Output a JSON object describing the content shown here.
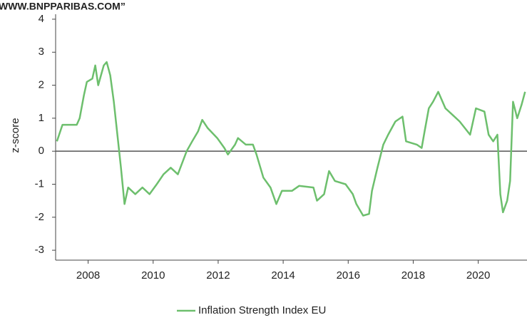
{
  "chart_data": {
    "type": "line",
    "title": "WWW.BNPPARIBAS.COM”",
    "ylabel": "z-score",
    "xlim": [
      2007,
      2021.5
    ],
    "xticks": [
      2008,
      2010,
      2012,
      2014,
      2016,
      2018,
      2020
    ],
    "ylim": [
      -3.3,
      4.15
    ],
    "yticks": [
      -3,
      -2,
      -1,
      0,
      1,
      2,
      3,
      4
    ],
    "legend": "bottom",
    "x": [
      2007.04,
      2007.21,
      2007.47,
      2007.65,
      2007.74,
      2007.87,
      2007.96,
      2008.13,
      2008.22,
      2008.31,
      2008.48,
      2008.57,
      2008.68,
      2008.79,
      2008.9,
      2009.01,
      2009.12,
      2009.23,
      2009.45,
      2009.67,
      2009.89,
      2010.11,
      2010.32,
      2010.54,
      2010.76,
      2011.03,
      2011.2,
      2011.38,
      2011.51,
      2011.68,
      2011.97,
      2012.19,
      2012.3,
      2012.52,
      2012.61,
      2012.85,
      2013.07,
      2013.18,
      2013.39,
      2013.61,
      2013.79,
      2013.96,
      2014.27,
      2014.49,
      2014.93,
      2015.04,
      2015.26,
      2015.41,
      2015.59,
      2015.92,
      2016.14,
      2016.25,
      2016.46,
      2016.64,
      2016.73,
      2016.9,
      2017.08,
      2017.23,
      2017.45,
      2017.67,
      2017.78,
      2018.11,
      2018.26,
      2018.35,
      2018.48,
      2018.61,
      2018.77,
      2018.99,
      2019.21,
      2019.43,
      2019.75,
      2019.93,
      2020.19,
      2020.32,
      2020.46,
      2020.59,
      2020.68,
      2020.76,
      2020.89,
      2020.98,
      2021.07,
      2021.2,
      2021.33,
      2021.44
    ],
    "series": [
      {
        "name": "Inflation Strength Index EU",
        "color": "#6dbf6d",
        "values": [
          0.3,
          0.8,
          0.8,
          0.8,
          1.0,
          1.7,
          2.1,
          2.2,
          2.6,
          2.0,
          2.6,
          2.7,
          2.3,
          1.5,
          0.5,
          -0.5,
          -1.6,
          -1.1,
          -1.3,
          -1.1,
          -1.3,
          -1.0,
          -0.7,
          -0.5,
          -0.7,
          0.0,
          0.3,
          0.6,
          0.95,
          0.7,
          0.4,
          0.1,
          -0.1,
          0.2,
          0.4,
          0.2,
          0.2,
          -0.1,
          -0.8,
          -1.1,
          -1.6,
          -1.2,
          -1.2,
          -1.05,
          -1.1,
          -1.5,
          -1.3,
          -0.6,
          -0.9,
          -1.0,
          -1.3,
          -1.6,
          -1.95,
          -1.9,
          -1.2,
          -0.5,
          0.2,
          0.5,
          0.9,
          1.05,
          0.3,
          0.2,
          0.1,
          0.6,
          1.3,
          1.5,
          1.8,
          1.3,
          1.1,
          0.9,
          0.5,
          1.3,
          1.2,
          0.5,
          0.3,
          0.5,
          -1.3,
          -1.85,
          -1.5,
          -0.9,
          1.5,
          1.0,
          1.4,
          1.8
        ]
      }
    ]
  }
}
